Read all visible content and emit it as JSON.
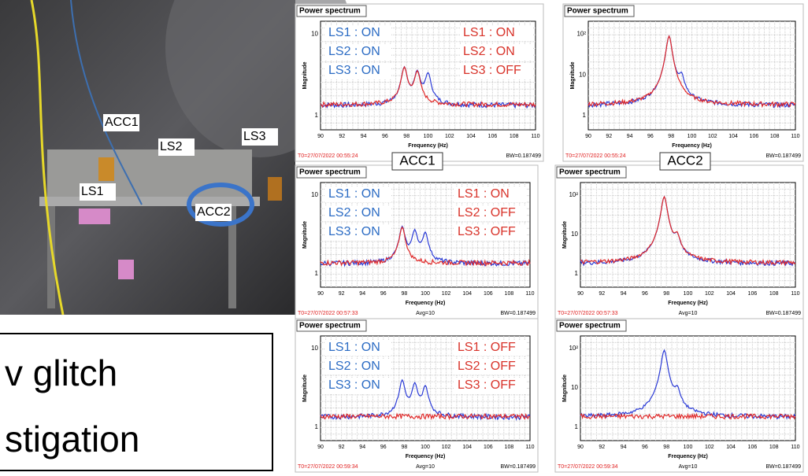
{
  "photo": {
    "labels": [
      "ACC1",
      "LS2",
      "LS3",
      "LS1",
      "ACC2"
    ]
  },
  "text_box": {
    "lines": [
      "v glitch",
      "stigation"
    ]
  },
  "captions": [
    "ACC1",
    "ACC2"
  ],
  "xticks": [
    "90",
    "92",
    "94",
    "96",
    "98",
    "100",
    "102",
    "104",
    "106",
    "108",
    "110"
  ],
  "panels": [
    {
      "header": "Power spectrum",
      "ylabel": "Magnitude",
      "xlabel": "Frequency (Hz)",
      "yticks": [
        "10",
        "1"
      ],
      "timestamp": "T0=27/07/2022 00:55:24",
      "avg": null,
      "bw": "BW=0.187499",
      "legend_left": [
        "LS1 : ON",
        "LS2 : ON",
        "LS3 : ON"
      ],
      "legend_right": [
        "LS1 : ON",
        "LS2 : ON",
        "LS3 : OFF"
      ]
    },
    {
      "header": "Power spectrum",
      "ylabel": "Magnitude",
      "xlabel": "Frequency (Hz)",
      "yticks": [
        "10²",
        "10",
        "1"
      ],
      "timestamp": "T0=27/07/2022 00:55:24",
      "avg": null,
      "bw": "BW=0.187499",
      "legend_left": [],
      "legend_right": []
    },
    {
      "header": "Power spectrum",
      "ylabel": "Magnitude",
      "xlabel": "Frequency (Hz)",
      "yticks": [
        "10",
        "1"
      ],
      "timestamp": "T0=27/07/2022 00:57:33",
      "avg": "Avg=10",
      "bw": "BW=0.187499",
      "legend_left": [
        "LS1 : ON",
        "LS2 : ON",
        "LS3 : ON"
      ],
      "legend_right": [
        "LS1 : ON",
        "LS2 : OFF",
        "LS3 : OFF"
      ]
    },
    {
      "header": "Power spectrum",
      "ylabel": "Magnitude",
      "xlabel": "Frequency (Hz)",
      "yticks": [
        "10²",
        "10",
        "1"
      ],
      "timestamp": "T0=27/07/2022 00:57:33",
      "avg": "Avg=10",
      "bw": "BW=0.187499",
      "legend_left": [],
      "legend_right": []
    },
    {
      "header": "Power spectrum",
      "ylabel": "Magnitude",
      "xlabel": "Frequency (Hz)",
      "yticks": [
        "10",
        "1"
      ],
      "timestamp": "T0=27/07/2022 00:59:34",
      "avg": "Avg=10",
      "bw": "BW=0.187499",
      "legend_left": [
        "LS1 : ON",
        "LS2 : ON",
        "LS3 : ON"
      ],
      "legend_right": [
        "LS1 : OFF",
        "LS2 : OFF",
        "LS3 : OFF"
      ]
    },
    {
      "header": "Power spectrum",
      "ylabel": "Magnitude",
      "xlabel": "Frequency (Hz)",
      "yticks": [
        "10²",
        "10",
        "1"
      ],
      "timestamp": "T0=27/07/2022 00:59:34",
      "avg": "Avg=10",
      "bw": "BW=0.187499",
      "legend_left": [],
      "legend_right": []
    }
  ]
}
